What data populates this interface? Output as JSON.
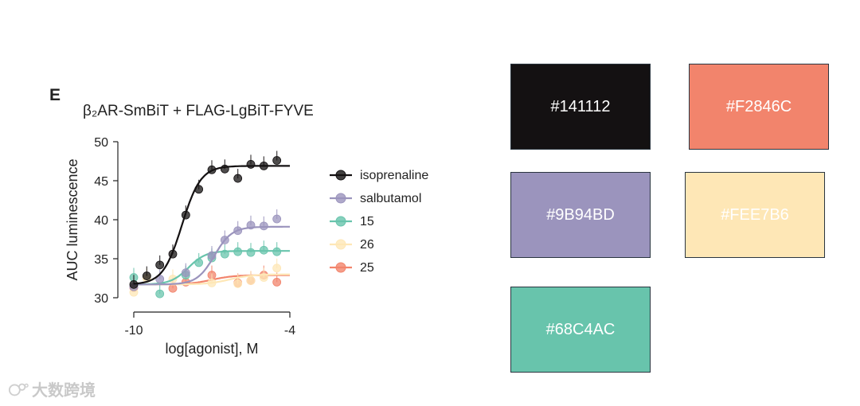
{
  "chart_data": {
    "type": "scatter",
    "panel_letter": "E",
    "title": "β₂AR-SmBiT + FLAG-LgBiT-FYVE",
    "xlabel": "log[agonist], M",
    "ylabel": "AUC luminescence",
    "xlim": [
      -10,
      -4
    ],
    "ylim": [
      30,
      50
    ],
    "x_ticks": [
      -10,
      -4
    ],
    "y_ticks": [
      30,
      35,
      40,
      45,
      50
    ],
    "legend_position": "right",
    "series": [
      {
        "name": "isoprenaline",
        "color": "#141112",
        "points": [
          {
            "x": -10,
            "y": 31.7
          },
          {
            "x": -9.5,
            "y": 32.8
          },
          {
            "x": -9.0,
            "y": 34.2
          },
          {
            "x": -8.5,
            "y": 35.6
          },
          {
            "x": -8.0,
            "y": 40.6
          },
          {
            "x": -7.5,
            "y": 43.9
          },
          {
            "x": -7.0,
            "y": 46.4
          },
          {
            "x": -6.5,
            "y": 46.5
          },
          {
            "x": -6.0,
            "y": 45.3
          },
          {
            "x": -5.5,
            "y": 47.1
          },
          {
            "x": -5.0,
            "y": 46.9
          },
          {
            "x": -4.5,
            "y": 47.6
          }
        ],
        "fit": {
          "bottom": 31.7,
          "top": 46.9,
          "logEC50": -8.15,
          "hill": 1.2
        }
      },
      {
        "name": "salbutamol",
        "color": "#9B94BD",
        "points": [
          {
            "x": -10,
            "y": 31.4
          },
          {
            "x": -9.0,
            "y": 32.4
          },
          {
            "x": -8.0,
            "y": 33.2
          },
          {
            "x": -7.0,
            "y": 35.4
          },
          {
            "x": -6.5,
            "y": 37.4
          },
          {
            "x": -6.0,
            "y": 38.6
          },
          {
            "x": -5.5,
            "y": 39.3
          },
          {
            "x": -5.0,
            "y": 39.2
          },
          {
            "x": -4.5,
            "y": 40.1
          }
        ],
        "fit": {
          "bottom": 31.7,
          "top": 39.1,
          "logEC50": -6.9,
          "hill": 1.3
        }
      },
      {
        "name": "15",
        "color": "#68C4AC",
        "points": [
          {
            "x": -10,
            "y": 32.6
          },
          {
            "x": -9.0,
            "y": 30.5
          },
          {
            "x": -8.0,
            "y": 32.9
          },
          {
            "x": -7.5,
            "y": 34.5
          },
          {
            "x": -7.0,
            "y": 35.1
          },
          {
            "x": -6.5,
            "y": 35.6
          },
          {
            "x": -6.0,
            "y": 35.9
          },
          {
            "x": -5.5,
            "y": 35.8
          },
          {
            "x": -5.0,
            "y": 36.1
          },
          {
            "x": -4.5,
            "y": 35.9
          }
        ],
        "fit": {
          "bottom": 31.7,
          "top": 36.0,
          "logEC50": -7.9,
          "hill": 1.3
        }
      },
      {
        "name": "26",
        "color": "#FEE7B6",
        "points": [
          {
            "x": -10,
            "y": 30.7
          },
          {
            "x": -9.5,
            "y": 32.5
          },
          {
            "x": -8.5,
            "y": 32.4
          },
          {
            "x": -7.0,
            "y": 31.9
          },
          {
            "x": -6.0,
            "y": 31.8
          },
          {
            "x": -5.5,
            "y": 32.2
          },
          {
            "x": -5.0,
            "y": 32.6
          },
          {
            "x": -4.5,
            "y": 33.8
          }
        ],
        "fit": {
          "bottom": 31.7,
          "top": 33.0,
          "logEC50": -6.3,
          "hill": 1.0
        }
      },
      {
        "name": "25",
        "color": "#F2846C",
        "points": [
          {
            "x": -10,
            "y": 31.3
          },
          {
            "x": -8.5,
            "y": 31.2
          },
          {
            "x": -8.0,
            "y": 32.0
          },
          {
            "x": -7.0,
            "y": 32.9
          },
          {
            "x": -6.0,
            "y": 31.9
          },
          {
            "x": -5.5,
            "y": 32.2
          },
          {
            "x": -5.0,
            "y": 32.9
          },
          {
            "x": -4.5,
            "y": 32.0
          }
        ],
        "fit": {
          "bottom": 31.7,
          "top": 32.9,
          "logEC50": -7.0,
          "hill": 1.0
        }
      }
    ]
  },
  "palette": [
    {
      "hex": "#141112",
      "label": "#141112"
    },
    {
      "hex": "#F2846C",
      "label": "#F2846C"
    },
    {
      "hex": "#9B94BD",
      "label": "#9B94BD"
    },
    {
      "hex": "#FEE7B6",
      "label": "#FEE7B6"
    },
    {
      "hex": "#68C4AC",
      "label": "#68C4AC"
    }
  ],
  "watermark": {
    "text": "大数跨境"
  }
}
